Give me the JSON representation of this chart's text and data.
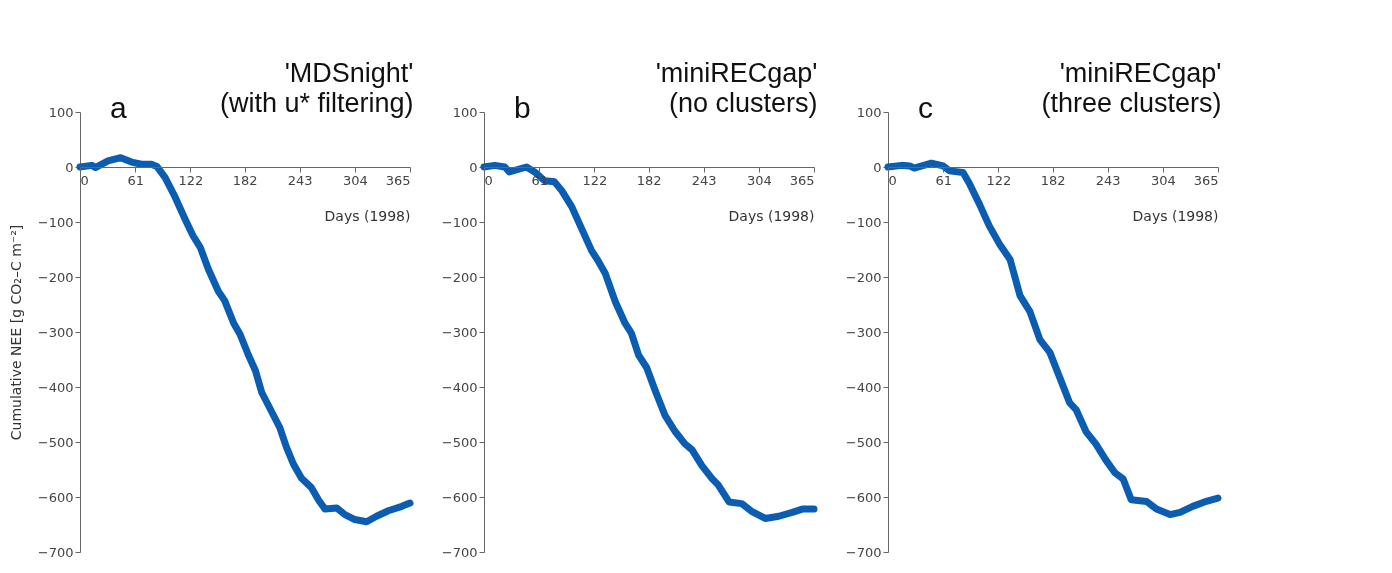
{
  "chart_data": [
    {
      "type": "line",
      "title": "'MDSnight'\n(with u* filtering)",
      "annotations": [
        "a"
      ],
      "xlabel": "Days (1998)",
      "ylabel": "Cumulative NEE [g CO₂–C m⁻²]",
      "xlim": [
        0,
        365
      ],
      "xticks": [
        0,
        61,
        122,
        182,
        243,
        304,
        365
      ],
      "ylim": [
        -700,
        100
      ],
      "yticks": [
        -700,
        -600,
        -500,
        -400,
        -300,
        -200,
        -100,
        0,
        100
      ],
      "grid": false,
      "series": [
        {
          "color": "#0a5db0",
          "x": [
            0,
            13,
            17,
            31,
            45,
            57,
            68,
            79,
            85,
            94,
            105,
            116,
            125,
            133,
            142,
            153,
            160,
            170,
            177,
            186,
            194,
            201,
            212,
            221,
            228,
            236,
            245,
            256,
            264,
            271,
            284,
            293,
            304,
            317,
            328,
            341,
            356,
            365
          ],
          "values": [
            0,
            3,
            -1,
            11,
            17,
            9,
            5,
            5,
            1,
            -19,
            -54,
            -94,
            -125,
            -146,
            -186,
            -226,
            -243,
            -284,
            -304,
            -341,
            -370,
            -410,
            -445,
            -474,
            -508,
            -540,
            -566,
            -583,
            -606,
            -622,
            -620,
            -632,
            -641,
            -645,
            -635,
            -625,
            -617,
            -611
          ]
        }
      ]
    },
    {
      "type": "line",
      "title": "'miniRECgap'\n(no clusters)",
      "annotations": [
        "b"
      ],
      "xlabel": "Days (1998)",
      "xlim": [
        0,
        365
      ],
      "xticks": [
        0,
        61,
        122,
        182,
        243,
        304,
        365
      ],
      "ylim": [
        -700,
        100
      ],
      "yticks": [
        -700,
        -600,
        -500,
        -400,
        -300,
        -200,
        -100,
        0,
        100
      ],
      "grid": false,
      "series": [
        {
          "color": "#0a5db0",
          "x": [
            0,
            12,
            23,
            28,
            47,
            56,
            67,
            78,
            86,
            97,
            108,
            119,
            126,
            134,
            145,
            156,
            163,
            171,
            180,
            189,
            200,
            211,
            222,
            230,
            241,
            252,
            259,
            271,
            285,
            296,
            311,
            326,
            341,
            352,
            365
          ],
          "values": [
            0,
            3,
            0,
            -9,
            0,
            -9,
            -25,
            -27,
            -43,
            -72,
            -112,
            -152,
            -170,
            -193,
            -244,
            -284,
            -302,
            -342,
            -365,
            -405,
            -451,
            -480,
            -503,
            -514,
            -543,
            -566,
            -578,
            -609,
            -612,
            -626,
            -639,
            -635,
            -628,
            -622,
            -622
          ]
        }
      ]
    },
    {
      "type": "line",
      "title": "'miniRECgap'\n(three clusters)",
      "annotations": [
        "c"
      ],
      "xlabel": "Days (1998)",
      "xlim": [
        0,
        365
      ],
      "xticks": [
        0,
        61,
        122,
        182,
        243,
        304,
        365
      ],
      "ylim": [
        -700,
        100
      ],
      "yticks": [
        -700,
        -600,
        -500,
        -400,
        -300,
        -200,
        -100,
        0,
        100
      ],
      "grid": false,
      "series": [
        {
          "color": "#0a5db0",
          "x": [
            0,
            15,
            24,
            29,
            48,
            61,
            68,
            83,
            90,
            101,
            112,
            124,
            135,
            146,
            157,
            168,
            179,
            190,
            201,
            208,
            219,
            230,
            241,
            251,
            260,
            269,
            286,
            297,
            312,
            323,
            337,
            350,
            365
          ],
          "values": [
            0,
            3,
            2,
            -2,
            7,
            2,
            -7,
            -10,
            -30,
            -67,
            -107,
            -142,
            -168,
            -234,
            -263,
            -314,
            -337,
            -383,
            -429,
            -441,
            -481,
            -504,
            -533,
            -556,
            -567,
            -605,
            -608,
            -622,
            -632,
            -628,
            -617,
            -609,
            -602
          ]
        }
      ]
    }
  ]
}
